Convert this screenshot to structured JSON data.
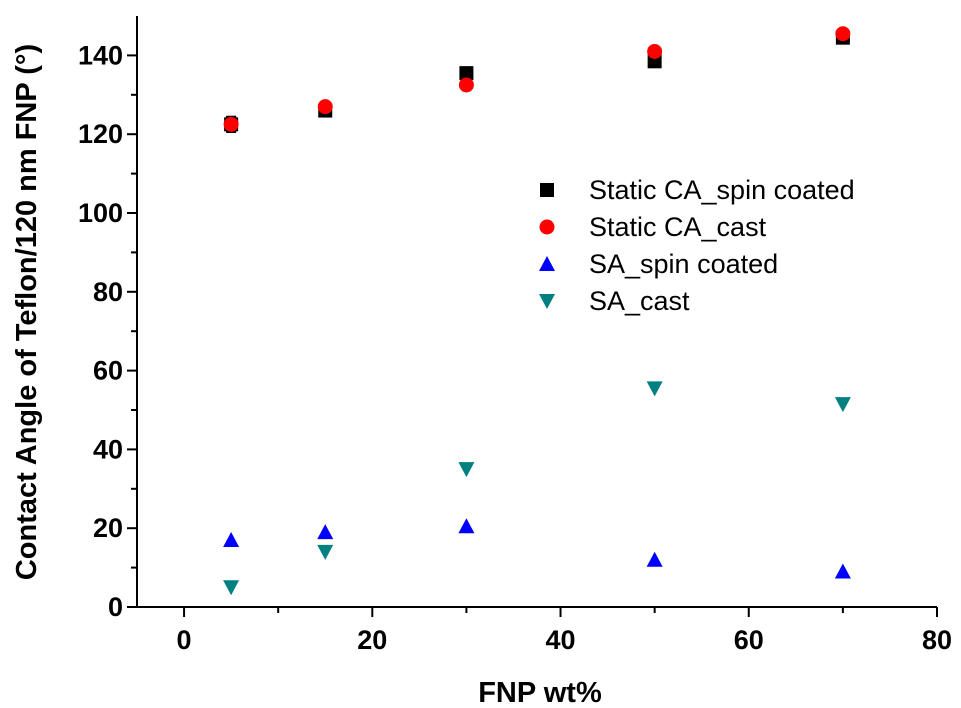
{
  "chart_data": {
    "type": "scatter",
    "xlabel": "FNP wt%",
    "ylabel": "Contact Angle of Teflon/120 nm FNP (°)",
    "xlim": [
      -5,
      80
    ],
    "ylim": [
      0,
      150
    ],
    "xticks": [
      "0",
      "20",
      "40",
      "60",
      "80"
    ],
    "yticks": [
      "0",
      "20",
      "40",
      "60",
      "80",
      "100",
      "120",
      "140"
    ],
    "grid": false,
    "legend_position": "center-right",
    "series": [
      {
        "name": "Static CA_spin coated",
        "marker": "square",
        "color": "#000000",
        "x": [
          5,
          15,
          30,
          50,
          70
        ],
        "y": [
          122.5,
          126,
          135.5,
          138.5,
          144.5
        ],
        "err": [
          2,
          1.5,
          0.5,
          1,
          0.8
        ]
      },
      {
        "name": "Static CA_cast",
        "marker": "circle",
        "color": "#ff0000",
        "x": [
          5,
          15,
          30,
          50,
          70
        ],
        "y": [
          122.5,
          127,
          132.5,
          141,
          145.5
        ],
        "err": [
          1.8,
          1,
          0.5,
          0.8,
          0.5
        ]
      },
      {
        "name": "SA_spin coated",
        "marker": "triangle-up",
        "color": "#0000ff",
        "x": [
          5,
          15,
          30,
          50,
          70
        ],
        "y": [
          17,
          19,
          20.5,
          12,
          9
        ],
        "err": [
          0,
          0,
          0,
          0,
          0
        ]
      },
      {
        "name": "SA_cast",
        "marker": "triangle-down",
        "color": "#008080",
        "x": [
          5,
          15,
          30,
          50,
          70
        ],
        "y": [
          5,
          14,
          35,
          55.5,
          51.5
        ],
        "err": [
          0,
          0,
          0,
          0,
          0
        ]
      }
    ]
  }
}
